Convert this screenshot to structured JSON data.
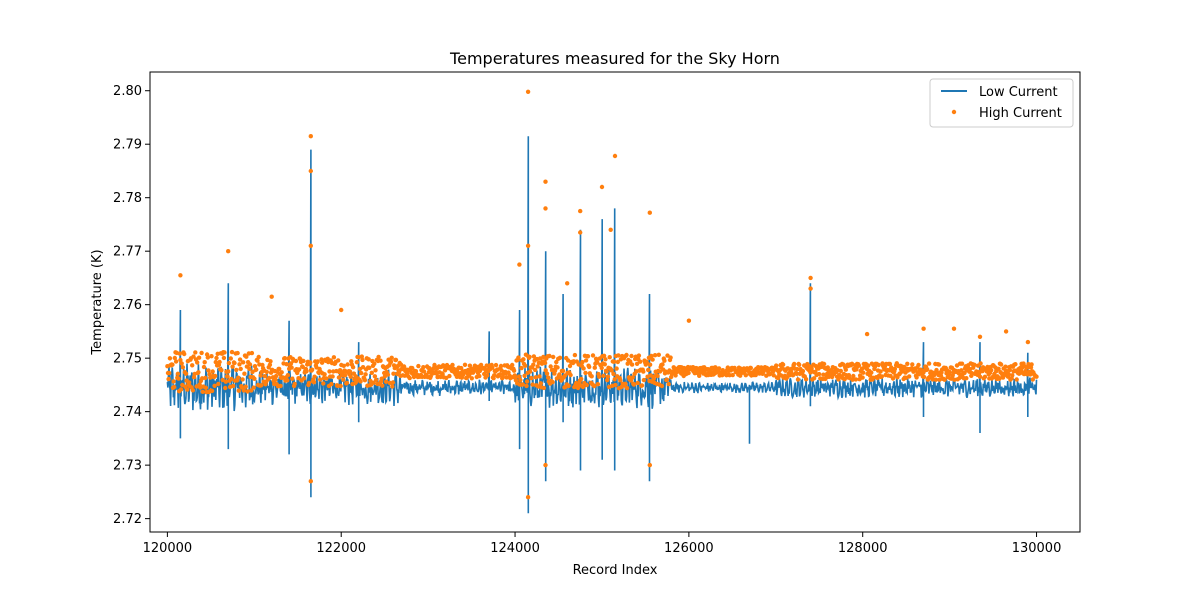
{
  "chart_data": {
    "type": "line",
    "title": "Temperatures measured for the Sky Horn",
    "xlabel": "Record Index",
    "ylabel": "Temperature (K)",
    "xlim": [
      119800,
      130500
    ],
    "ylim": [
      2.7175,
      2.8035
    ],
    "xticks": [
      120000,
      122000,
      124000,
      126000,
      128000,
      130000
    ],
    "xtick_labels": [
      "120000",
      "122000",
      "124000",
      "126000",
      "128000",
      "130000"
    ],
    "yticks": [
      2.72,
      2.73,
      2.74,
      2.75,
      2.76,
      2.77,
      2.78,
      2.79,
      2.8
    ],
    "ytick_labels": [
      "2.72",
      "2.73",
      "2.74",
      "2.75",
      "2.76",
      "2.77",
      "2.78",
      "2.79",
      "2.80"
    ],
    "grid": false,
    "legend": {
      "position": "top-right"
    },
    "series": [
      {
        "name": "Low Current",
        "kind": "line",
        "color": "#1f77b4",
        "x_range": [
          120000,
          130000
        ],
        "baseline": 2.7445,
        "spikes": [
          [
            120150,
            2.759,
            2.735
          ],
          [
            120700,
            2.764,
            2.733
          ],
          [
            121400,
            2.757,
            2.732
          ],
          [
            121650,
            2.789,
            2.724
          ],
          [
            122200,
            2.753,
            2.738
          ],
          [
            123700,
            2.755,
            2.742
          ],
          [
            124050,
            2.759,
            2.733
          ],
          [
            124150,
            2.7915,
            2.721
          ],
          [
            124350,
            2.77,
            2.727
          ],
          [
            124550,
            2.762,
            2.738
          ],
          [
            124750,
            2.774,
            2.729
          ],
          [
            125000,
            2.776,
            2.731
          ],
          [
            125150,
            2.778,
            2.729
          ],
          [
            125550,
            2.762,
            2.727
          ],
          [
            126700,
            2.745,
            2.734
          ],
          [
            127400,
            2.764,
            2.741
          ],
          [
            128700,
            2.753,
            2.739
          ],
          [
            129350,
            2.753,
            2.736
          ],
          [
            129900,
            2.751,
            2.739
          ]
        ]
      },
      {
        "name": "High Current",
        "kind": "scatter",
        "color": "#ff7f0e",
        "x_range": [
          120000,
          130000
        ],
        "baseline": 2.7475,
        "outliers": [
          [
            120150,
            2.7655
          ],
          [
            120700,
            2.77
          ],
          [
            121200,
            2.7615
          ],
          [
            121650,
            2.7915
          ],
          [
            121650,
            2.785
          ],
          [
            121650,
            2.727
          ],
          [
            121650,
            2.771
          ],
          [
            122000,
            2.759
          ],
          [
            124150,
            2.7998
          ],
          [
            124150,
            2.771
          ],
          [
            124150,
            2.724
          ],
          [
            124050,
            2.7675
          ],
          [
            124350,
            2.783
          ],
          [
            124350,
            2.778
          ],
          [
            124350,
            2.73
          ],
          [
            124600,
            2.764
          ],
          [
            124750,
            2.7775
          ],
          [
            124750,
            2.7735
          ],
          [
            125000,
            2.782
          ],
          [
            125150,
            2.7878
          ],
          [
            125100,
            2.774
          ],
          [
            125550,
            2.7772
          ],
          [
            125550,
            2.73
          ],
          [
            126000,
            2.757
          ],
          [
            127400,
            2.765
          ],
          [
            127400,
            2.763
          ],
          [
            128050,
            2.7545
          ],
          [
            128700,
            2.7555
          ],
          [
            129050,
            2.7555
          ],
          [
            129350,
            2.754
          ],
          [
            129650,
            2.755
          ],
          [
            129900,
            2.753
          ]
        ]
      }
    ]
  }
}
